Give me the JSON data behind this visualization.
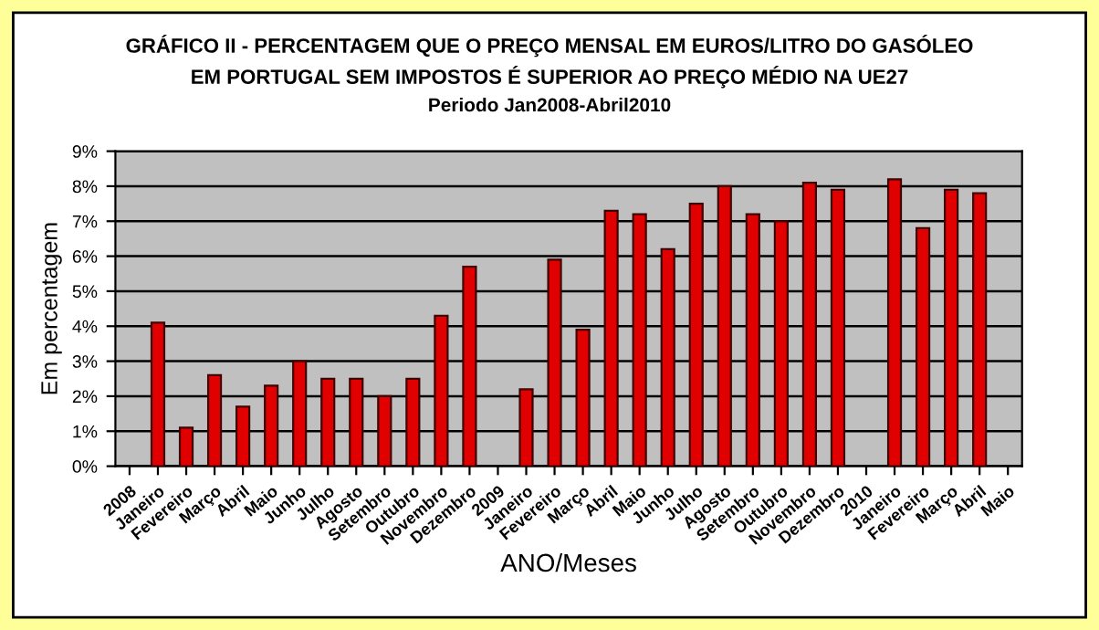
{
  "chart_data": {
    "type": "bar",
    "title": "GRÁFICO II - PERCENTAGEM QUE O PREÇO MENSAL EM EUROS/LITRO DO GASÓLEO\nEM PORTUGAL SEM IMPOSTOS É SUPERIOR AO PREÇO MÉDIO NA UE27",
    "subtitle": "Periodo Jan2008-Abril2010",
    "xlabel": "ANO/Meses",
    "ylabel": "Em percentagem",
    "categories": [
      "2008",
      "Janeiro",
      "Fevereiro",
      "Março",
      "Abril",
      "Maio",
      "Junho",
      "Julho",
      "Agosto",
      "Setembro",
      "Outubro",
      "Novembro",
      "Dezembro",
      "2009",
      "Janeiro",
      "Fevereiro",
      "Março",
      "Abril",
      "Maio",
      "Junho",
      "Julho",
      "Agosto",
      "Setembro",
      "Outubro",
      "Novembro",
      "Dezembro",
      "2010",
      "Janeiro",
      "Fevereiro",
      "Março",
      "Abril",
      "Maio"
    ],
    "values": [
      null,
      4.1,
      1.1,
      2.6,
      1.7,
      2.3,
      3.0,
      2.5,
      2.5,
      2.0,
      2.5,
      4.3,
      5.7,
      null,
      2.2,
      5.9,
      3.9,
      7.3,
      7.2,
      6.2,
      7.5,
      8.0,
      7.2,
      7.0,
      8.1,
      7.9,
      null,
      8.2,
      6.8,
      7.9,
      7.8,
      null
    ],
    "color": "#e00000",
    "ylim": [
      0,
      9
    ],
    "yticks": [
      {
        "value": 0,
        "label": "0%"
      },
      {
        "value": 1,
        "label": "1%"
      },
      {
        "value": 2,
        "label": "2%"
      },
      {
        "value": 3,
        "label": "3%"
      },
      {
        "value": 4,
        "label": "4%"
      },
      {
        "value": 5,
        "label": "5%"
      },
      {
        "value": 6,
        "label": "6%"
      },
      {
        "value": 7,
        "label": "7%"
      },
      {
        "value": 8,
        "label": "8%"
      },
      {
        "value": 9,
        "label": "9%"
      }
    ],
    "grid": "y",
    "legend": false
  }
}
